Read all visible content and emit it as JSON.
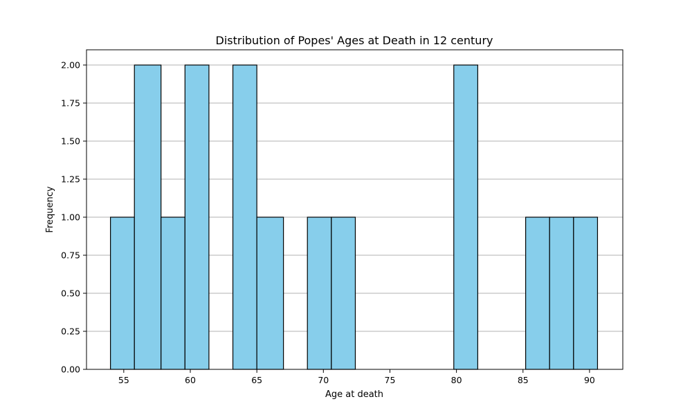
{
  "chart_data": {
    "type": "bar",
    "title": "Distribution of Popes' Ages at Death in 12 century",
    "xlabel": "Age at death",
    "ylabel": "Frequency",
    "xlim": [
      52.2,
      92.5
    ],
    "ylim": [
      0,
      2.1
    ],
    "bin_edges": [
      54.0,
      55.8,
      57.8,
      59.6,
      61.4,
      63.2,
      65.0,
      67.0,
      68.8,
      70.6,
      72.4,
      74.2,
      76.0,
      78.0,
      79.8,
      81.6,
      83.4,
      85.2,
      87.0,
      88.8,
      90.6
    ],
    "values": [
      1,
      2,
      1,
      2,
      0,
      2,
      1,
      0,
      1,
      1,
      0,
      0,
      0,
      0,
      2,
      0,
      0,
      1,
      1,
      1
    ],
    "xticks": [
      55,
      60,
      65,
      70,
      75,
      80,
      85,
      90
    ],
    "xtick_labels": [
      "55",
      "60",
      "65",
      "70",
      "75",
      "80",
      "85",
      "90"
    ],
    "yticks": [
      0,
      0.25,
      0.5,
      0.75,
      1.0,
      1.25,
      1.5,
      1.75,
      2.0
    ],
    "ytick_labels": [
      "0.00",
      "0.25",
      "0.50",
      "0.75",
      "1.00",
      "1.25",
      "1.50",
      "1.75",
      "2.00"
    ],
    "grid": "y",
    "bar_color": "#87ceeb",
    "edge_color": "#000000",
    "grid_color": "#b0b0b0"
  }
}
